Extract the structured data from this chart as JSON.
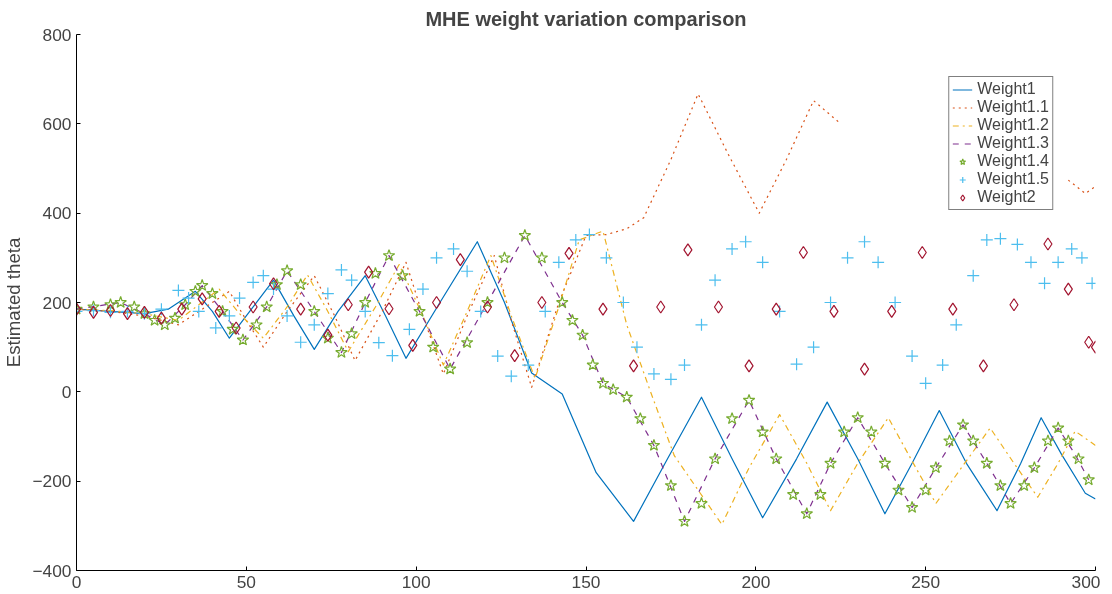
{
  "chart_data": {
    "type": "line",
    "title": "MHE weight variation comparison",
    "ylabel": "Estimated theta",
    "xlim": [
      0,
      300
    ],
    "ylim": [
      -400,
      800
    ],
    "xticks": [
      0,
      50,
      100,
      150,
      200,
      250,
      300
    ],
    "yticks": [
      -400,
      -200,
      0,
      200,
      400,
      600,
      800
    ],
    "grid": false,
    "legend": "top right",
    "series": [
      {
        "name": "Weight1",
        "marker": "none",
        "line_style": "solid",
        "color": "#0072bd",
        "x": [
          0,
          10,
          20,
          27,
          35,
          40,
          45,
          52,
          58,
          64,
          70,
          77,
          85,
          91,
          97,
          107,
          118,
          126,
          134,
          143,
          153,
          164,
          174,
          184,
          193,
          202,
          212,
          221,
          230,
          238,
          246,
          254,
          262,
          271,
          278,
          284,
          290,
          297,
          300
        ],
        "values": [
          185,
          180,
          175,
          185,
          225,
          180,
          120,
          190,
          250,
          170,
          95,
          180,
          260,
          170,
          75,
          200,
          336,
          200,
          42,
          -5,
          -181,
          -290,
          -150,
          -12,
          -150,
          -282,
          -150,
          -23,
          -150,
          -273,
          -160,
          -42,
          -160,
          -266,
          -160,
          -58,
          -140,
          -227,
          -240
        ]
      },
      {
        "name": "Weight1.1",
        "marker": "none",
        "line_style": "dotted",
        "color": "#d95319",
        "x": [
          0,
          10,
          20,
          30,
          38,
          45,
          50,
          55,
          62,
          70,
          76,
          82,
          90,
          97,
          102,
          108,
          115,
          123,
          128,
          134,
          142,
          150,
          156,
          162,
          167,
          175,
          183,
          192,
          201,
          209,
          217,
          225,
          230,
          285,
          292,
          297,
          300
        ],
        "values": [
          185,
          180,
          170,
          150,
          190,
          225,
          160,
          100,
          180,
          260,
          170,
          70,
          180,
          290,
          170,
          40,
          170,
          305,
          160,
          10,
          200,
          350,
          352,
          365,
          390,
          520,
          667,
          530,
          400,
          520,
          652,
          600,
          null,
          null,
          474,
          444,
          460
        ]
      },
      {
        "name": "Weight1.2",
        "marker": "none",
        "line_style": "dashdot",
        "color": "#edb120",
        "x": [
          0,
          10,
          20,
          30,
          36,
          42,
          48,
          55,
          62,
          68,
          74,
          80,
          88,
          95,
          102,
          108,
          115,
          122,
          128,
          135,
          142,
          148,
          155,
          162,
          169,
          176,
          190,
          198,
          207,
          215,
          222,
          230,
          239,
          246,
          253,
          261,
          269,
          276,
          283,
          289,
          294,
          300
        ],
        "values": [
          185,
          182,
          175,
          160,
          195,
          230,
          175,
          120,
          190,
          262,
          180,
          90,
          190,
          285,
          170,
          60,
          180,
          305,
          170,
          30,
          190,
          340,
          360,
          150,
          0,
          -143,
          -297,
          -170,
          -51,
          -160,
          -266,
          -160,
          -58,
          -155,
          -250,
          -165,
          -81,
          -160,
          -236,
          -160,
          -88,
          -120
        ]
      },
      {
        "name": "Weight1.3",
        "marker": "none",
        "line_style": "dashed",
        "color": "#7e2f8e",
        "x": [
          0,
          13,
          20,
          26,
          32,
          37,
          43,
          49,
          56,
          62,
          70,
          78,
          85,
          92,
          101,
          110,
          121,
          132,
          143,
          149,
          155,
          162,
          170,
          179,
          188,
          198,
          206,
          215,
          222,
          230,
          238,
          246,
          253,
          261,
          268,
          275,
          282,
          289,
          294,
          298
        ],
        "values": [
          185,
          200,
          175,
          150,
          195,
          238,
          180,
          116,
          190,
          271,
          180,
          88,
          200,
          305,
          180,
          51,
          200,
          350,
          200,
          127,
          19,
          -12,
          -120,
          -290,
          -150,
          -19,
          -150,
          -273,
          -160,
          -58,
          -160,
          -259,
          -170,
          -74,
          -160,
          -250,
          -170,
          -81,
          -140,
          -197
        ]
      },
      {
        "name": "Weight1.4",
        "type": "scatter",
        "marker": "star",
        "color": "#77ac30",
        "x": [
          0,
          5,
          10,
          13,
          17,
          20,
          23,
          26,
          29,
          32,
          35,
          37,
          40,
          43,
          46,
          49,
          53,
          56,
          59,
          62,
          66,
          70,
          74,
          78,
          81,
          85,
          88,
          92,
          96,
          101,
          105,
          110,
          115,
          121,
          126,
          132,
          137,
          143,
          146,
          149,
          152,
          155,
          158,
          162,
          166,
          170,
          175,
          179,
          184,
          188,
          193,
          198,
          202,
          206,
          211,
          215,
          219,
          222,
          226,
          230,
          234,
          238,
          242,
          246,
          250,
          253,
          257,
          261,
          264,
          268,
          272,
          275,
          279,
          282,
          286,
          289,
          292,
          295,
          298
        ],
        "values": [
          185,
          190,
          195,
          200,
          190,
          175,
          160,
          150,
          165,
          195,
          225,
          238,
          220,
          180,
          140,
          116,
          150,
          190,
          240,
          271,
          240,
          180,
          120,
          88,
          130,
          200,
          265,
          305,
          260,
          180,
          100,
          51,
          110,
          200,
          300,
          350,
          300,
          200,
          160,
          127,
          60,
          19,
          5,
          -12,
          -60,
          -120,
          -210,
          -290,
          -250,
          -150,
          -60,
          -19,
          -90,
          -150,
          -230,
          -273,
          -230,
          -160,
          -90,
          -58,
          -90,
          -160,
          -220,
          -259,
          -220,
          -170,
          -110,
          -74,
          -110,
          -160,
          -210,
          -250,
          -210,
          -170,
          -110,
          -81,
          -110,
          -150,
          -197
        ]
      },
      {
        "name": "Weight1.5",
        "type": "scatter",
        "marker": "cross",
        "color": "#4dbeee",
        "x": [
          0,
          5,
          10,
          15,
          20,
          25,
          30,
          33,
          36,
          41,
          45,
          48,
          52,
          55,
          58,
          62,
          66,
          70,
          74,
          78,
          81,
          85,
          89,
          93,
          98,
          102,
          106,
          111,
          115,
          119,
          124,
          128,
          133,
          138,
          142,
          147,
          151,
          156,
          161,
          165,
          170,
          175,
          179,
          184,
          188,
          193,
          197,
          202,
          207,
          212,
          217,
          222,
          227,
          232,
          236,
          241,
          246,
          250,
          255,
          259,
          264,
          268,
          272,
          277,
          281,
          285,
          289,
          293,
          296,
          299
        ],
        "values": [
          180,
          182,
          178,
          180,
          175,
          185,
          227,
          210,
          180,
          143,
          170,
          210,
          245,
          260,
          230,
          170,
          111,
          150,
          220,
          273,
          250,
          180,
          110,
          81,
          140,
          230,
          300,
          320,
          270,
          180,
          80,
          35,
          60,
          180,
          290,
          340,
          352,
          300,
          200,
          100,
          40,
          28,
          60,
          150,
          250,
          320,
          336,
          290,
          180,
          62,
          100,
          200,
          300,
          336,
          290,
          200,
          80,
          19,
          60,
          150,
          260,
          340,
          343,
          330,
          290,
          243,
          290,
          320,
          300,
          243
        ]
      },
      {
        "name": "Weight2",
        "type": "scatter",
        "marker": "diamond",
        "color": "#a2142f",
        "x": [
          0,
          5,
          10,
          15,
          20,
          25,
          31,
          37,
          42,
          47,
          52,
          58,
          66,
          74,
          80,
          86,
          92,
          99,
          106,
          113,
          121,
          129,
          137,
          145,
          155,
          164,
          172,
          180,
          189,
          198,
          206,
          214,
          223,
          232,
          240,
          249,
          258,
          267,
          276,
          286,
          292,
          298,
          300
        ],
        "values": [
          185,
          178,
          182,
          175,
          178,
          165,
          185,
          208,
          180,
          143,
          190,
          242,
          185,
          127,
          195,
          268,
          186,
          104,
          200,
          296,
          190,
          81,
          200,
          310,
          185,
          58,
          190,
          318,
          190,
          58,
          185,
          312,
          180,
          51,
          180,
          312,
          185,
          58,
          195,
          331,
          230,
          111,
          100
        ]
      }
    ]
  }
}
